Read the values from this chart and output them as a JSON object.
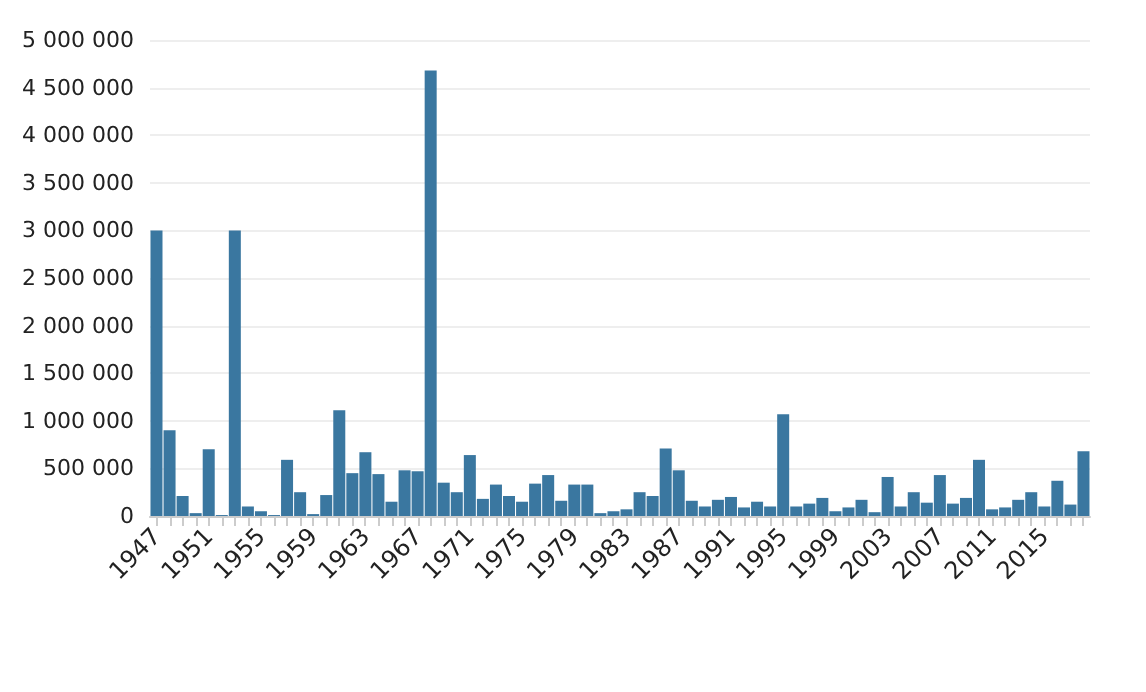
{
  "chart_data": {
    "type": "bar",
    "categories": [
      "1947",
      null,
      null,
      null,
      "1951",
      null,
      null,
      null,
      "1955",
      null,
      null,
      null,
      "1959",
      null,
      null,
      null,
      "1963",
      null,
      null,
      null,
      "1967",
      null,
      null,
      null,
      "1971",
      null,
      null,
      null,
      "1975",
      null,
      null,
      null,
      "1979",
      null,
      null,
      null,
      "1983",
      null,
      null,
      null,
      "1987",
      null,
      null,
      null,
      "1991",
      null,
      null,
      null,
      "1995",
      null,
      null,
      null,
      "1999",
      null,
      null,
      null,
      "2003",
      null,
      null,
      null,
      "2007",
      null,
      null,
      null,
      "2011",
      null,
      null,
      null,
      "2015",
      null,
      null,
      null
    ],
    "values": [
      3000000,
      900000,
      210000,
      30000,
      700000,
      10000,
      3000000,
      100000,
      50000,
      10000,
      590000,
      250000,
      20000,
      220000,
      1110000,
      450000,
      670000,
      440000,
      150000,
      480000,
      470000,
      4680000,
      350000,
      250000,
      640000,
      180000,
      330000,
      210000,
      150000,
      340000,
      430000,
      160000,
      330000,
      330000,
      30000,
      50000,
      70000,
      250000,
      210000,
      710000,
      480000,
      160000,
      100000,
      170000,
      200000,
      90000,
      150000,
      100000,
      1070000,
      100000,
      130000,
      190000,
      50000,
      90000,
      170000,
      40000,
      410000,
      100000,
      250000,
      140000,
      430000,
      130000,
      190000,
      590000,
      70000,
      90000,
      170000,
      250000,
      100000,
      370000,
      120000,
      680000
    ],
    "color": "#3a77a0",
    "ylim": [
      0,
      5000000
    ],
    "yticks": [
      0,
      {
        "value": 500000,
        "label": "500 000"
      },
      {
        "value": 1000000,
        "label": "1 000 000"
      },
      {
        "value": 1500000,
        "label": "1 500 000"
      },
      {
        "value": 2000000,
        "label": "2 000 000"
      },
      {
        "value": 2500000,
        "label": "2 500 000"
      },
      {
        "value": 3000000,
        "label": "3 000 000"
      },
      {
        "value": 3500000,
        "label": "3 500 000"
      },
      {
        "value": 4000000,
        "label": "4 000 000"
      },
      {
        "value": 4500000,
        "label": "4 500 000"
      },
      {
        "value": 5000000,
        "label": "5 000 000"
      }
    ],
    "grid": "y"
  }
}
